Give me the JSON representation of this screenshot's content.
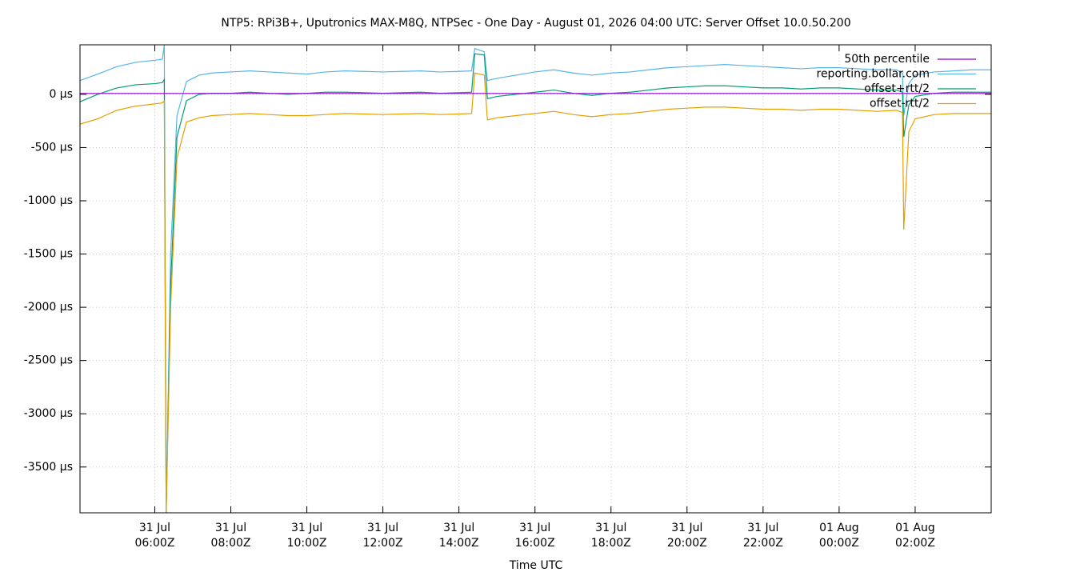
{
  "chart_data": {
    "type": "line",
    "title": "NTP5: RPi3B+, Uputronics MAX-M8Q, NTPSec - One Day - August 01, 2026 04:00 UTC: Server Offset 10.0.50.200",
    "x_label": "Time UTC",
    "grid": true,
    "legend": "top-right",
    "xlim": [
      "31 Jul 04:02Z",
      "01 Aug 04:00Z"
    ],
    "xticks": [
      "31 Jul 06:00Z",
      "31 Jul 08:00Z",
      "31 Jul 10:00Z",
      "31 Jul 12:00Z",
      "31 Jul 14:00Z",
      "31 Jul 16:00Z",
      "31 Jul 18:00Z",
      "31 Jul 20:00Z",
      "31 Jul 22:00Z",
      "01 Aug 00:00Z",
      "01 Aug 02:00Z"
    ],
    "ylim": [
      -3930,
      465
    ],
    "yticks": [
      {
        "value": 0,
        "label": "0 µs"
      },
      {
        "value": -500,
        "label": "-500 µs"
      },
      {
        "value": -1000,
        "label": "-1000 µs"
      },
      {
        "value": -1500,
        "label": "-1500 µs"
      },
      {
        "value": -2000,
        "label": "-2000 µs"
      },
      {
        "value": -2500,
        "label": "-2500 µs"
      },
      {
        "value": -3000,
        "label": "-3000 µs"
      },
      {
        "value": -3500,
        "label": "-3500 µs"
      }
    ],
    "x": [
      "31 Jul 04:02Z",
      "31 Jul 04:30Z",
      "31 Jul 05:00Z",
      "31 Jul 05:30Z",
      "31 Jul 06:00Z",
      "31 Jul 06:12Z",
      "31 Jul 06:15Z",
      "31 Jul 06:18Z",
      "31 Jul 06:25Z",
      "31 Jul 06:35Z",
      "31 Jul 06:50Z",
      "31 Jul 07:10Z",
      "31 Jul 07:30Z",
      "31 Jul 08:00Z",
      "31 Jul 08:30Z",
      "31 Jul 09:00Z",
      "31 Jul 09:30Z",
      "31 Jul 10:00Z",
      "31 Jul 10:30Z",
      "31 Jul 11:00Z",
      "31 Jul 11:30Z",
      "31 Jul 12:00Z",
      "31 Jul 12:30Z",
      "31 Jul 13:00Z",
      "31 Jul 13:30Z",
      "31 Jul 14:00Z",
      "31 Jul 14:20Z",
      "31 Jul 14:25Z",
      "31 Jul 14:40Z",
      "31 Jul 14:45Z",
      "31 Jul 15:00Z",
      "31 Jul 15:30Z",
      "31 Jul 16:00Z",
      "31 Jul 16:30Z",
      "31 Jul 17:00Z",
      "31 Jul 17:30Z",
      "31 Jul 18:00Z",
      "31 Jul 18:30Z",
      "31 Jul 19:00Z",
      "31 Jul 19:30Z",
      "31 Jul 20:00Z",
      "31 Jul 20:30Z",
      "31 Jul 21:00Z",
      "31 Jul 21:30Z",
      "31 Jul 22:00Z",
      "31 Jul 22:30Z",
      "31 Jul 23:00Z",
      "31 Jul 23:30Z",
      "01 Aug 00:00Z",
      "01 Aug 00:30Z",
      "01 Aug 01:00Z",
      "01 Aug 01:30Z",
      "01 Aug 01:40Z",
      "01 Aug 01:42Z",
      "01 Aug 01:50Z",
      "01 Aug 02:00Z",
      "01 Aug 02:30Z",
      "01 Aug 03:00Z",
      "01 Aug 03:30Z",
      "01 Aug 04:00Z"
    ],
    "series": [
      {
        "name": "50th percentile",
        "color": "#9400d3",
        "values": [
          8,
          8,
          8,
          8,
          8,
          8,
          8,
          8,
          8,
          8,
          8,
          8,
          8,
          8,
          8,
          8,
          8,
          8,
          8,
          8,
          8,
          8,
          8,
          8,
          8,
          8,
          8,
          8,
          8,
          8,
          8,
          8,
          8,
          8,
          8,
          8,
          8,
          8,
          8,
          8,
          8,
          8,
          8,
          8,
          8,
          8,
          8,
          8,
          8,
          8,
          8,
          8,
          8,
          8,
          8,
          8,
          8,
          8,
          8,
          8
        ]
      },
      {
        "name": "reporting.bollar.com",
        "color": "#56b4e9",
        "values": [
          130,
          190,
          260,
          300,
          320,
          330,
          465,
          -3930,
          -1500,
          -200,
          120,
          180,
          200,
          210,
          220,
          210,
          200,
          190,
          210,
          220,
          215,
          210,
          215,
          220,
          210,
          215,
          220,
          430,
          400,
          130,
          150,
          180,
          210,
          230,
          200,
          180,
          200,
          210,
          230,
          250,
          260,
          270,
          280,
          270,
          260,
          250,
          240,
          250,
          250,
          240,
          230,
          230,
          200,
          -200,
          100,
          180,
          210,
          220,
          230,
          230
        ]
      },
      {
        "name": "offset+rtt/2",
        "color": "#009e73",
        "values": [
          -70,
          0,
          60,
          90,
          100,
          110,
          140,
          -3930,
          -1800,
          -400,
          -60,
          0,
          10,
          10,
          20,
          10,
          0,
          10,
          20,
          20,
          15,
          10,
          15,
          20,
          10,
          15,
          20,
          380,
          370,
          -40,
          -20,
          0,
          20,
          40,
          10,
          -10,
          10,
          20,
          40,
          60,
          70,
          80,
          80,
          70,
          60,
          60,
          50,
          60,
          60,
          50,
          40,
          40,
          20,
          -400,
          -100,
          -20,
          10,
          20,
          20,
          20
        ]
      },
      {
        "name": "offset-rtt/2",
        "color": "#e69f00",
        "values": [
          -280,
          -230,
          -150,
          -110,
          -90,
          -80,
          -60,
          -3930,
          -2000,
          -600,
          -260,
          -220,
          -200,
          -190,
          -180,
          -190,
          -200,
          -200,
          -190,
          -180,
          -185,
          -190,
          -185,
          -180,
          -190,
          -185,
          -180,
          200,
          180,
          -240,
          -220,
          -200,
          -180,
          -160,
          -190,
          -210,
          -190,
          -180,
          -160,
          -140,
          -130,
          -120,
          -120,
          -130,
          -140,
          -140,
          -150,
          -140,
          -140,
          -150,
          -160,
          -150,
          -170,
          -1270,
          -350,
          -230,
          -190,
          -180,
          -180,
          -180
        ]
      }
    ]
  }
}
